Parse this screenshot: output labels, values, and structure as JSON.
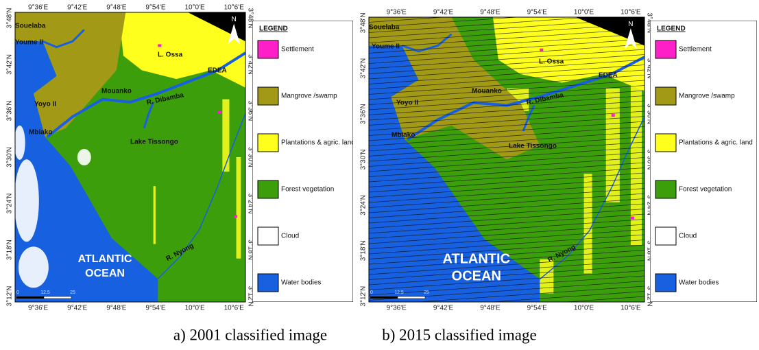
{
  "panels": [
    {
      "caption": "a) 2001 classified image",
      "lon_ticks": [
        "9°36'E",
        "9°42'E",
        "9°48'E",
        "9°54'E",
        "10°0'E",
        "10°6'E"
      ],
      "lat_ticks": [
        "3°48'N",
        "3°42'N",
        "3°36'N",
        "3°30'N",
        "3°24'N",
        "3°18'N",
        "3°12'N"
      ],
      "places": [
        "Souelaba",
        "Youme II",
        "L. Ossa",
        "EDEA",
        "Mouanko",
        "R. Dibamba",
        "Yoyo II",
        "Mbiako",
        "Lake Tissongo",
        "R. Nyong"
      ],
      "ocean_label": [
        "ATLANTIC",
        "OCEAN"
      ],
      "north": "N",
      "scale_labels": [
        "0",
        "12.5",
        "25"
      ],
      "legend": {
        "title": "LEGEND",
        "items": [
          {
            "label": "Settlement",
            "color": "#ff1fc8"
          },
          {
            "label": "Mangrove /swamp",
            "color": "#a29a16"
          },
          {
            "label": "Plantations & agric. land",
            "color": "#ffff1e"
          },
          {
            "label": "Forest vegetation",
            "color": "#3d9e0c"
          },
          {
            "label": "Cloud",
            "color": "#ffffff"
          },
          {
            "label": "Water bodies",
            "color": "#1760e0"
          }
        ]
      }
    },
    {
      "caption": "b) 2015 classified image",
      "lon_ticks": [
        "9°36'E",
        "9°42'E",
        "9°48'E",
        "9°54'E",
        "10°0'E",
        "10°6'E"
      ],
      "lat_ticks": [
        "3°48'N",
        "3°42'N",
        "3°36'N",
        "3°30'N",
        "3°24'N",
        "3°18'N",
        "3°12'N"
      ],
      "places": [
        "Souelaba",
        "Youme II",
        "L. Ossa",
        "EDEA",
        "Mouanko",
        "R. Dibamba",
        "Yoyo II",
        "Mbiako",
        "Lake Tissongo",
        "R. Nyong"
      ],
      "ocean_label": [
        "ATLANTIC",
        "OCEAN"
      ],
      "north": "N",
      "scale_labels": [
        "0",
        "12.5",
        "25"
      ],
      "legend": {
        "title": "LEGEND",
        "items": [
          {
            "label": "Settlement",
            "color": "#ff1fc8"
          },
          {
            "label": "Mangrove /swamp",
            "color": "#a29a16"
          },
          {
            "label": "Plantations & agric. land",
            "color": "#ffff1e"
          },
          {
            "label": "Forest vegetation",
            "color": "#3d9e0c"
          },
          {
            "label": "Cloud",
            "color": "#ffffff"
          },
          {
            "label": "Water bodies",
            "color": "#1760e0"
          }
        ]
      }
    }
  ]
}
